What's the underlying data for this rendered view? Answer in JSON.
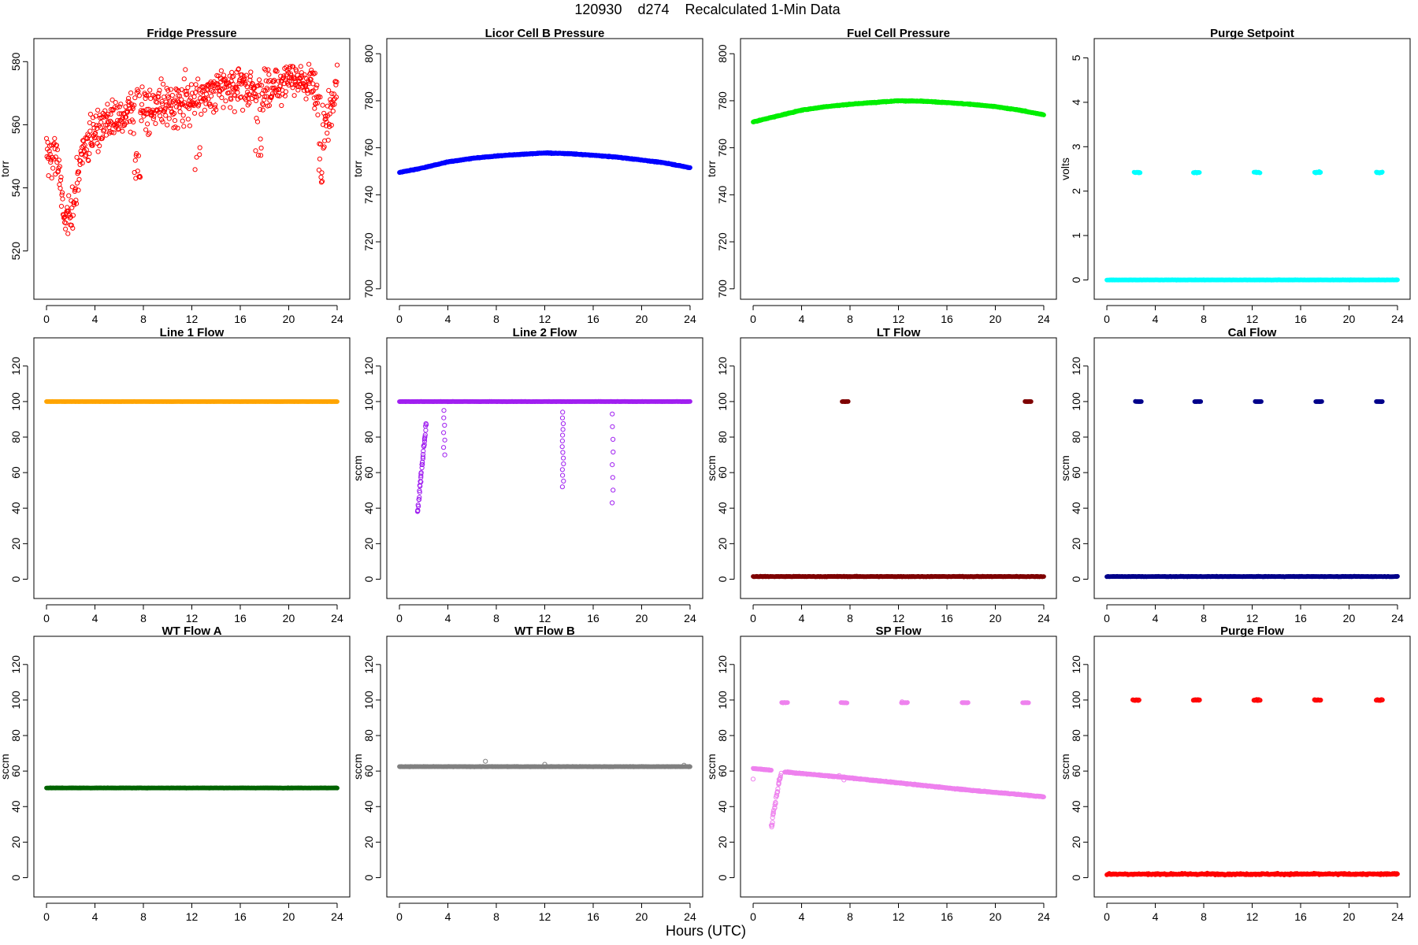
{
  "figure": {
    "title": "120930    d274    Recalculated 1-Min Data",
    "xlabel": "Hours (UTC)"
  },
  "chart_data": [
    {
      "type": "scatter",
      "title": "Fridge Pressure",
      "ylabel": "torr",
      "color": "#ff0000",
      "filled": false,
      "xlim": [
        0,
        24
      ],
      "ylim": [
        508,
        584
      ],
      "xticks": [
        0,
        4,
        8,
        12,
        16,
        20,
        24
      ],
      "yticks": [
        520,
        540,
        560,
        580
      ],
      "series": [
        {
          "pattern": "noisy_rising",
          "base": [
            [
              0,
              551
            ],
            [
              1,
              549
            ],
            [
              1.5,
              527
            ],
            [
              2,
              532
            ],
            [
              2.5,
              540
            ],
            [
              3,
              553
            ],
            [
              4,
              558
            ],
            [
              5,
              561
            ],
            [
              6,
              562
            ],
            [
              7,
              563
            ],
            [
              8,
              565
            ],
            [
              10,
              567
            ],
            [
              12,
              568
            ],
            [
              14,
              572
            ],
            [
              16,
              572
            ],
            [
              18,
              571
            ],
            [
              20,
              574
            ],
            [
              22,
              572
            ],
            [
              23,
              560
            ],
            [
              24,
              573
            ]
          ],
          "spread": 9,
          "dips": [
            [
              7.5,
              537
            ],
            [
              12.5,
              540
            ],
            [
              17.5,
              548
            ],
            [
              22.7,
              540
            ]
          ]
        }
      ]
    },
    {
      "type": "scatter",
      "title": "Licor Cell B Pressure",
      "ylabel": "torr",
      "color": "#0000ff",
      "filled": true,
      "xlim": [
        0,
        24
      ],
      "ylim": [
        700,
        802
      ],
      "xticks": [
        0,
        4,
        8,
        12,
        16,
        20,
        24
      ],
      "yticks": [
        700,
        720,
        740,
        760,
        780,
        800
      ],
      "series": [
        {
          "pattern": "curve",
          "base": [
            [
              0,
              749.5
            ],
            [
              2,
              751.5
            ],
            [
              4,
              754
            ],
            [
              6,
              755.5
            ],
            [
              8,
              756.5
            ],
            [
              10,
              757.2
            ],
            [
              12,
              757.8
            ],
            [
              14,
              757.5
            ],
            [
              16,
              756.8
            ],
            [
              18,
              756
            ],
            [
              20,
              754.8
            ],
            [
              22,
              753.5
            ],
            [
              24,
              751.5
            ]
          ],
          "spread": 0.4
        }
      ]
    },
    {
      "type": "scatter",
      "title": "Fuel Cell Pressure",
      "ylabel": "torr",
      "color": "#00ee00",
      "filled": true,
      "xlim": [
        0,
        24
      ],
      "ylim": [
        700,
        802
      ],
      "xticks": [
        0,
        4,
        8,
        12,
        16,
        20,
        24
      ],
      "yticks": [
        700,
        720,
        740,
        760,
        780,
        800
      ],
      "series": [
        {
          "pattern": "curve",
          "base": [
            [
              0,
              771
            ],
            [
              2,
              773.5
            ],
            [
              4,
              776
            ],
            [
              6,
              777.5
            ],
            [
              8,
              778.5
            ],
            [
              10,
              779.3
            ],
            [
              12,
              780
            ],
            [
              14,
              779.8
            ],
            [
              16,
              779.2
            ],
            [
              18,
              778.5
            ],
            [
              20,
              777.5
            ],
            [
              22,
              776
            ],
            [
              24,
              774
            ]
          ],
          "spread": 0.4
        }
      ]
    },
    {
      "type": "scatter",
      "title": "Purge Setpoint",
      "ylabel": "volts",
      "color": "#00ffff",
      "filled": true,
      "xlim": [
        0,
        24
      ],
      "ylim": [
        -0.2,
        5.2
      ],
      "xticks": [
        0,
        4,
        8,
        12,
        16,
        20,
        24
      ],
      "yticks": [
        0,
        1,
        2,
        3,
        4,
        5
      ],
      "series": [
        {
          "pattern": "flat",
          "level": 0.0,
          "spread": 0.01
        },
        {
          "pattern": "clusters",
          "level": 2.42,
          "spread": 0.03,
          "centers": [
            2.5,
            7.4,
            12.4,
            17.4,
            22.5
          ]
        }
      ]
    },
    {
      "type": "scatter",
      "title": "Line 1 Flow",
      "ylabel": "",
      "color": "#ffa500",
      "filled": true,
      "xlim": [
        0,
        24
      ],
      "ylim": [
        -5,
        130
      ],
      "xticks": [
        0,
        4,
        8,
        12,
        16,
        20,
        24
      ],
      "yticks": [
        0,
        20,
        40,
        60,
        80,
        100,
        120
      ],
      "series": [
        {
          "pattern": "flat",
          "level": 100,
          "spread": 0.1
        }
      ]
    },
    {
      "type": "scatter",
      "title": "Line 2 Flow",
      "ylabel": "sccm",
      "color": "#a020f0",
      "filled": true,
      "xlim": [
        0,
        24
      ],
      "ylim": [
        -5,
        130
      ],
      "xticks": [
        0,
        4,
        8,
        12,
        16,
        20,
        24
      ],
      "yticks": [
        0,
        20,
        40,
        60,
        80,
        100,
        120
      ],
      "series": [
        {
          "pattern": "flat",
          "level": 100,
          "spread": 0.2
        },
        {
          "pattern": "ramp",
          "filled": false,
          "from": [
            1.5,
            37
          ],
          "to": [
            2.2,
            88
          ],
          "n": 40
        },
        {
          "pattern": "column",
          "filled": false,
          "x": 3.7,
          "from": 70,
          "to": 95,
          "n": 7
        },
        {
          "pattern": "column",
          "filled": false,
          "x": 13.5,
          "from": 52,
          "to": 94,
          "n": 14
        },
        {
          "pattern": "column",
          "filled": false,
          "x": 17.6,
          "from": 43,
          "to": 93,
          "n": 8
        }
      ]
    },
    {
      "type": "scatter",
      "title": "LT Flow",
      "ylabel": "sccm",
      "color": "#7f0000",
      "filled": true,
      "xlim": [
        0,
        24
      ],
      "ylim": [
        -5,
        130
      ],
      "xticks": [
        0,
        4,
        8,
        12,
        16,
        20,
        24
      ],
      "yticks": [
        0,
        20,
        40,
        60,
        80,
        100,
        120
      ],
      "series": [
        {
          "pattern": "flat",
          "level": 1.5,
          "spread": 0.4
        },
        {
          "pattern": "clusters",
          "level": 100,
          "spread": 0.2,
          "centers": [
            7.6,
            22.7
          ]
        }
      ]
    },
    {
      "type": "scatter",
      "title": "Cal Flow",
      "ylabel": "sccm",
      "color": "#00008b",
      "filled": true,
      "xlim": [
        0,
        24
      ],
      "ylim": [
        -5,
        130
      ],
      "xticks": [
        0,
        4,
        8,
        12,
        16,
        20,
        24
      ],
      "yticks": [
        0,
        20,
        40,
        60,
        80,
        100,
        120
      ],
      "series": [
        {
          "pattern": "flat",
          "level": 1.5,
          "spread": 0.3
        },
        {
          "pattern": "clusters",
          "level": 100,
          "spread": 0.2,
          "centers": [
            2.6,
            7.5,
            12.5,
            17.5,
            22.5
          ]
        }
      ]
    },
    {
      "type": "scatter",
      "title": "WT Flow A",
      "ylabel": "sccm",
      "color": "#006400",
      "filled": true,
      "xlim": [
        0,
        24
      ],
      "ylim": [
        -5,
        130
      ],
      "xticks": [
        0,
        4,
        8,
        12,
        16,
        20,
        24
      ],
      "yticks": [
        0,
        20,
        40,
        60,
        80,
        100,
        120
      ],
      "series": [
        {
          "pattern": "flat",
          "level": 50.5,
          "spread": 0.2
        }
      ]
    },
    {
      "type": "scatter",
      "title": "WT Flow B",
      "ylabel": "sccm",
      "color": "#808080",
      "filled": true,
      "xlim": [
        0,
        24
      ],
      "ylim": [
        -5,
        130
      ],
      "xticks": [
        0,
        4,
        8,
        12,
        16,
        20,
        24
      ],
      "yticks": [
        0,
        20,
        40,
        60,
        80,
        100,
        120
      ],
      "series": [
        {
          "pattern": "flat",
          "level": 62.5,
          "spread": 0.3
        },
        {
          "pattern": "points",
          "filled": false,
          "xy": [
            [
              7.1,
              65.5
            ],
            [
              12.0,
              63.8
            ],
            [
              23.5,
              63.3
            ]
          ]
        }
      ]
    },
    {
      "type": "scatter",
      "title": "SP Flow",
      "ylabel": "sccm",
      "color": "#ee82ee",
      "filled": true,
      "xlim": [
        0,
        24
      ],
      "ylim": [
        -5,
        130
      ],
      "xticks": [
        0,
        4,
        8,
        12,
        16,
        20,
        24
      ],
      "yticks": [
        0,
        20,
        40,
        60,
        80,
        100,
        120
      ],
      "series": [
        {
          "pattern": "curve",
          "base": [
            [
              0,
              61.5
            ],
            [
              1.5,
              60.5
            ]
          ],
          "spread": 0.4
        },
        {
          "pattern": "ramp",
          "filled": false,
          "from": [
            1.5,
            29
          ],
          "to": [
            2.3,
            60
          ],
          "n": 30
        },
        {
          "pattern": "curve",
          "base": [
            [
              2.6,
              59.5
            ],
            [
              7.5,
              56.5
            ],
            [
              12.5,
              53
            ],
            [
              17.5,
              49.5
            ],
            [
              22.5,
              46.5
            ],
            [
              24,
              45.5
            ]
          ],
          "spread": 0.6
        },
        {
          "pattern": "clusters",
          "level": 98.5,
          "spread": 0.3,
          "centers": [
            2.6,
            7.5,
            12.5,
            17.5,
            22.5
          ]
        },
        {
          "pattern": "points",
          "filled": false,
          "xy": [
            [
              0.0,
              55.5
            ],
            [
              7.1,
              57.5
            ],
            [
              12.3,
              99.0
            ],
            [
              7.5,
              55.0
            ]
          ]
        }
      ]
    },
    {
      "type": "scatter",
      "title": "Purge Flow",
      "ylabel": "sccm",
      "color": "#ff0000",
      "filled": true,
      "xlim": [
        0,
        24
      ],
      "ylim": [
        -5,
        130
      ],
      "xticks": [
        0,
        4,
        8,
        12,
        16,
        20,
        24
      ],
      "yticks": [
        0,
        20,
        40,
        60,
        80,
        100,
        120
      ],
      "series": [
        {
          "pattern": "flat",
          "level": 2.0,
          "spread": 1.0
        },
        {
          "pattern": "clusters",
          "level": 100,
          "spread": 0.5,
          "centers": [
            2.4,
            7.4,
            12.4,
            17.4,
            22.5
          ],
          "filled": false
        }
      ]
    }
  ]
}
